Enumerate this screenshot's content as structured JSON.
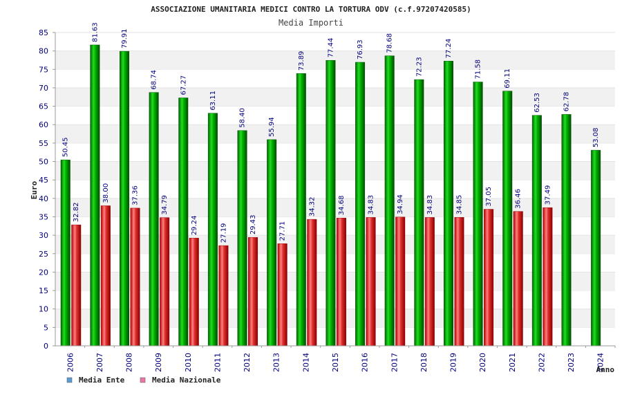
{
  "chart_data": {
    "type": "bar",
    "title": "ASSOCIAZIONE UMANITARIA MEDICI CONTRO LA TORTURA ODV (c.f.97207420585)",
    "subtitle": "Media Importi",
    "ylabel": "Euro",
    "xlabel": "Anno",
    "ylim": [
      0,
      85
    ],
    "ytick_step": 5,
    "grid": "horizontal bands",
    "legend_position": "bottom-left",
    "categories": [
      "2006",
      "2007",
      "2008",
      "2009",
      "2010",
      "2011",
      "2012",
      "2013",
      "2014",
      "2015",
      "2016",
      "2017",
      "2018",
      "2019",
      "2020",
      "2021",
      "2022",
      "2023",
      "2024"
    ],
    "series": [
      {
        "name": "Media Ente",
        "color": "#00b000",
        "legend_color": "#5b9bd5",
        "values": [
          50.45,
          81.63,
          79.91,
          68.74,
          67.27,
          63.11,
          58.4,
          55.94,
          73.89,
          77.44,
          76.93,
          78.68,
          72.23,
          77.24,
          71.58,
          69.11,
          62.53,
          62.78,
          53.08
        ],
        "labels": [
          "50.45",
          "81.63",
          "79.91",
          "68.74",
          "67.27",
          "63.11",
          "58.40",
          "55.94",
          "73.89",
          "77.44",
          "76.93",
          "78.68",
          "72.23",
          "77.24",
          "71.58",
          "69.11",
          "62.53",
          "62.78",
          "53.08"
        ]
      },
      {
        "name": "Media Nazionale",
        "color": "#e03030",
        "legend_color": "#e878a8",
        "values": [
          32.82,
          38.0,
          37.36,
          34.79,
          29.24,
          27.19,
          29.43,
          27.71,
          34.32,
          34.68,
          34.83,
          34.94,
          34.83,
          34.85,
          37.05,
          36.46,
          37.49,
          null,
          null
        ],
        "labels": [
          "32.82",
          "38.00",
          "37.36",
          "34.79",
          "29.24",
          "27.19",
          "29.43",
          "27.71",
          "34.32",
          "34.68",
          "34.83",
          "34.94",
          "34.83",
          "34.85",
          "37.05",
          "36.46",
          "37.49",
          "",
          ""
        ]
      }
    ]
  }
}
